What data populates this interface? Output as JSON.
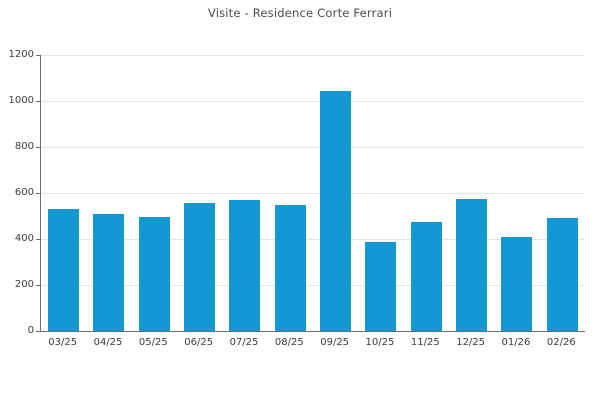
{
  "chart_data": {
    "type": "bar",
    "title": "Visite - Residence Corte Ferrari",
    "categories": [
      "03/25",
      "04/25",
      "05/25",
      "06/25",
      "07/25",
      "08/25",
      "09/25",
      "10/25",
      "11/25",
      "12/25",
      "01/26",
      "02/26"
    ],
    "values": [
      530,
      510,
      495,
      555,
      570,
      550,
      1045,
      385,
      475,
      575,
      410,
      490
    ],
    "xlabel": "",
    "ylabel": "",
    "ylim": [
      0,
      1200
    ],
    "ytick_step": 200,
    "ytick_labels": [
      "0",
      "200",
      "400",
      "600",
      "800",
      "1000",
      "1200"
    ],
    "grid": true,
    "legend": "none",
    "colors": {
      "bar": "#1398d4",
      "gridline": "#e6e6e6",
      "axis": "#6e6e6e",
      "tick_text": "#3c3c3c",
      "title_text": "#4d4d4d",
      "background": "#ffffff"
    }
  }
}
